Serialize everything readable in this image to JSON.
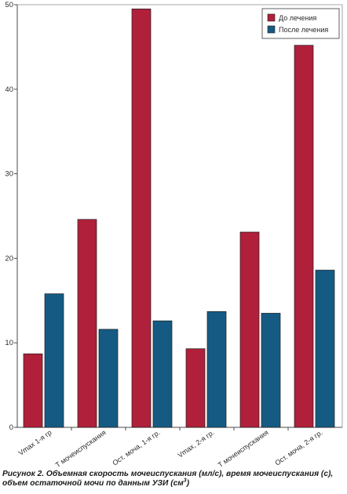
{
  "chart_data": {
    "type": "bar",
    "categories": [
      "Vmax 1-я гр",
      "T мочеиспускания",
      "Ост. моча, 1-я гр.",
      "Vmax, 2-я гр.",
      "T мочеиспускания",
      "Ост. моча, 2-я гр."
    ],
    "series": [
      {
        "name": "До лечения",
        "color": "#b0203a",
        "values": [
          8.7,
          24.6,
          49.5,
          9.3,
          23.1,
          45.2
        ]
      },
      {
        "name": "После лечения",
        "color": "#155a83",
        "values": [
          15.8,
          11.6,
          12.6,
          13.7,
          13.5,
          18.6
        ]
      }
    ],
    "title": "",
    "xlabel": "",
    "ylabel": "",
    "ylim": [
      0,
      50
    ],
    "yticks": [
      "0",
      "10",
      "20",
      "30",
      "40",
      "50"
    ],
    "grid": false,
    "legend_position": "top-right"
  },
  "caption": {
    "main": "Рисунок 2. Объемная скорость мочеиспускания (мл/с), время мочеиспускания (с), объем остаточной мочи по данным УЗИ (см",
    "superscript": "3",
    "closing": ")"
  }
}
